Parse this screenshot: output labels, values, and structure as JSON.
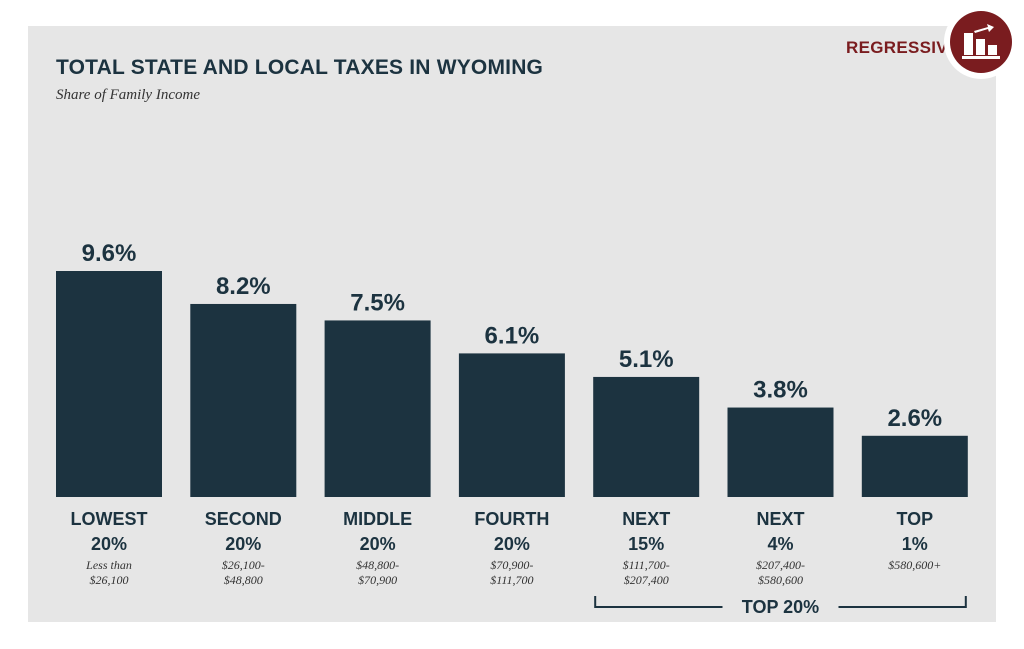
{
  "title": "TOTAL STATE AND LOCAL TAXES IN WYOMING",
  "subtitle": "Share of Family Income",
  "badge": {
    "label": "REGRESSIVE",
    "icon": "regressive-bars-icon",
    "color": "#7a1c1f"
  },
  "colors": {
    "bar": "#1c3340",
    "panel": "#e6e6e6",
    "accent": "#7a1c1f"
  },
  "chart_data": {
    "type": "bar",
    "title": "TOTAL STATE AND LOCAL TAXES IN WYOMING",
    "subtitle": "Share of Family Income",
    "categories": [
      {
        "line1": "LOWEST",
        "line2": "20%",
        "range": [
          "Less than",
          "$26,100"
        ]
      },
      {
        "line1": "SECOND",
        "line2": "20%",
        "range": [
          "$26,100-",
          "$48,800"
        ]
      },
      {
        "line1": "MIDDLE",
        "line2": "20%",
        "range": [
          "$48,800-",
          "$70,900"
        ]
      },
      {
        "line1": "FOURTH",
        "line2": "20%",
        "range": [
          "$70,900-",
          "$111,700"
        ]
      },
      {
        "line1": "NEXT",
        "line2": "15%",
        "range": [
          "$111,700-",
          "$207,400"
        ]
      },
      {
        "line1": "NEXT",
        "line2": "4%",
        "range": [
          "$207,400-",
          "$580,600"
        ]
      },
      {
        "line1": "TOP",
        "line2": "1%",
        "range": [
          "$580,600+"
        ]
      }
    ],
    "values": [
      9.6,
      8.2,
      7.5,
      6.1,
      5.1,
      3.8,
      2.6
    ],
    "value_labels": [
      "9.6%",
      "8.2%",
      "7.5%",
      "6.1%",
      "5.1%",
      "3.8%",
      "2.6%"
    ],
    "ylim": [
      0,
      9.6
    ],
    "grid": false,
    "bracket": {
      "label": "TOP 20%",
      "from_index": 4,
      "to_index": 6
    }
  }
}
